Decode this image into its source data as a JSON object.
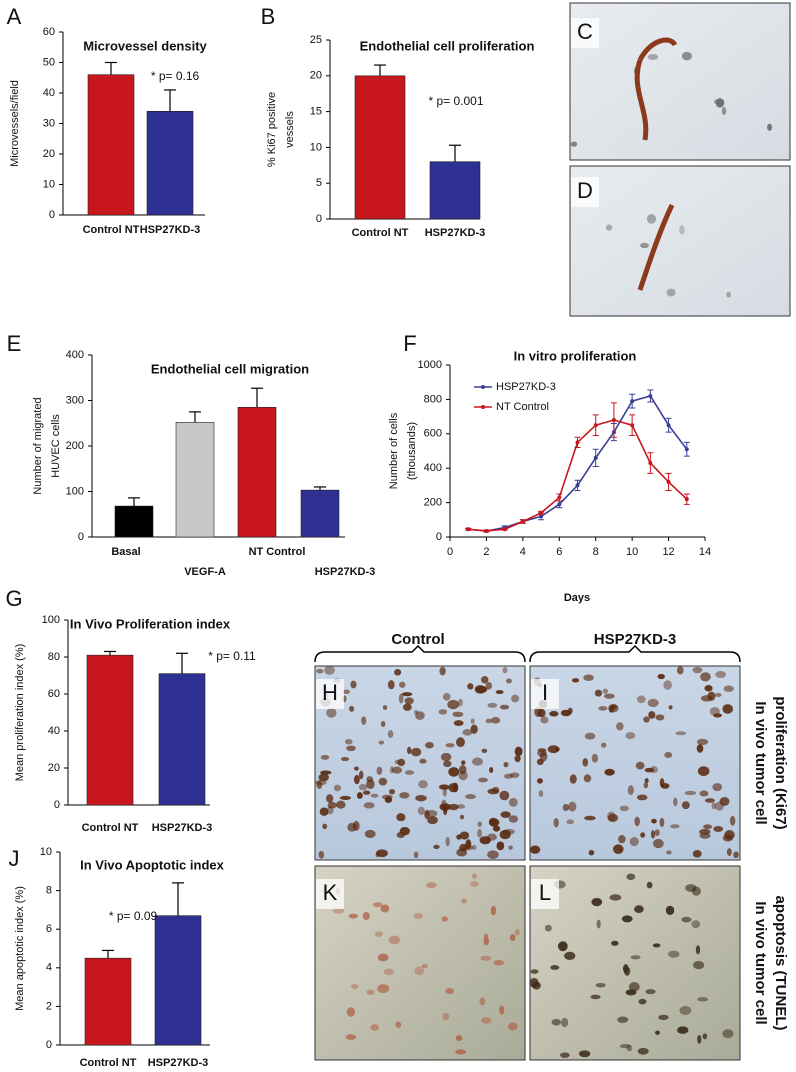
{
  "chart_data": [
    {
      "type": "bar",
      "panel": "A",
      "title": "Microvessel density",
      "ylabel": [
        "Microvessels/field"
      ],
      "categories": [
        "Control NT",
        "HSP27KD-3"
      ],
      "values": [
        46,
        34
      ],
      "errors": [
        4,
        7
      ],
      "colors": [
        "#c8161d",
        "#2e3192"
      ],
      "ylim": [
        0,
        60
      ],
      "yticks": [
        0,
        10,
        20,
        30,
        40,
        50,
        60
      ],
      "annotation": "* p= 0.16"
    },
    {
      "type": "bar",
      "panel": "B",
      "title": "Endothelial cell proliferation",
      "ylabel": [
        "% Ki67 positive",
        "vessels"
      ],
      "categories": [
        "Control NT",
        "HSP27KD-3"
      ],
      "values": [
        20,
        8
      ],
      "errors": [
        1.5,
        2.3
      ],
      "colors": [
        "#c8161d",
        "#2e3192"
      ],
      "ylim": [
        0,
        25
      ],
      "yticks": [
        0,
        5,
        10,
        15,
        20,
        25
      ],
      "annotation": "* p= 0.001"
    },
    {
      "type": "bar",
      "panel": "E",
      "title": "Endothelial cell migration",
      "ylabel": [
        "Number of migrated",
        "HUVEC cells"
      ],
      "categories": [
        "Basal",
        "VEGF-A",
        "NT Control",
        "HSP27KD-3"
      ],
      "values": [
        68,
        252,
        285,
        103
      ],
      "errors": [
        18,
        23,
        42,
        7
      ],
      "colors": [
        "#000000",
        "#c8c8c8",
        "#c8161d",
        "#2e3192"
      ],
      "ylim": [
        0,
        400
      ],
      "yticks": [
        0,
        100,
        200,
        300,
        400
      ]
    },
    {
      "type": "line",
      "panel": "F",
      "title": "In vitro proliferation",
      "xlabel": "Days",
      "ylabel": [
        "Number of cells",
        "(thousands)"
      ],
      "x": [
        1,
        2,
        3,
        4,
        5,
        6,
        7,
        8,
        9,
        10,
        11,
        12,
        13
      ],
      "series": [
        {
          "name": "HSP27KD-3",
          "color": "#3a3f96",
          "values": [
            45,
            35,
            55,
            90,
            120,
            190,
            300,
            460,
            610,
            790,
            820,
            650,
            510
          ],
          "errors": [
            5,
            5,
            10,
            10,
            20,
            20,
            30,
            50,
            50,
            40,
            35,
            40,
            40
          ]
        },
        {
          "name": "NT Control",
          "color": "#c8161d",
          "values": [
            45,
            35,
            45,
            90,
            140,
            230,
            550,
            650,
            680,
            650,
            430,
            320,
            220
          ],
          "errors": [
            5,
            5,
            5,
            10,
            10,
            20,
            30,
            60,
            100,
            60,
            60,
            50,
            30
          ]
        }
      ],
      "xlim": [
        0,
        14
      ],
      "xticks": [
        0,
        2,
        4,
        6,
        8,
        10,
        12,
        14
      ],
      "ylim": [
        0,
        1000
      ],
      "yticks": [
        0,
        200,
        400,
        600,
        800,
        1000
      ]
    },
    {
      "type": "bar",
      "panel": "G",
      "title": "In Vivo Proliferation index",
      "ylabel": [
        "Mean proliferation index (%)"
      ],
      "categories": [
        "Control NT",
        "HSP27KD-3"
      ],
      "values": [
        81,
        71
      ],
      "errors": [
        2,
        11
      ],
      "colors": [
        "#c8161d",
        "#2e3192"
      ],
      "ylim": [
        0,
        100
      ],
      "yticks": [
        0,
        20,
        40,
        60,
        80,
        100
      ],
      "annotation": "* p= 0.11"
    },
    {
      "type": "bar",
      "panel": "J",
      "title": "In Vivo Apoptotic index",
      "ylabel": [
        "Mean apoptotic index (%)"
      ],
      "categories": [
        "Control NT",
        "HSP27KD-3"
      ],
      "values": [
        4.5,
        6.7
      ],
      "errors": [
        0.4,
        1.7
      ],
      "colors": [
        "#c8161d",
        "#2e3192"
      ],
      "ylim": [
        0,
        10
      ],
      "yticks": [
        0,
        2,
        4,
        6,
        8,
        10
      ],
      "annotation": "* p= 0.09"
    }
  ],
  "micrographs": {
    "labels": [
      "C",
      "D",
      "H",
      "I",
      "K",
      "L"
    ],
    "column_headers": [
      "Control",
      "HSP27KD-3"
    ],
    "row_labels": [
      [
        "In vivo tumor cell",
        "proliferation (Ki67)"
      ],
      [
        "In vivo tumor cell",
        "apoptosis (TUNEL)"
      ]
    ]
  }
}
